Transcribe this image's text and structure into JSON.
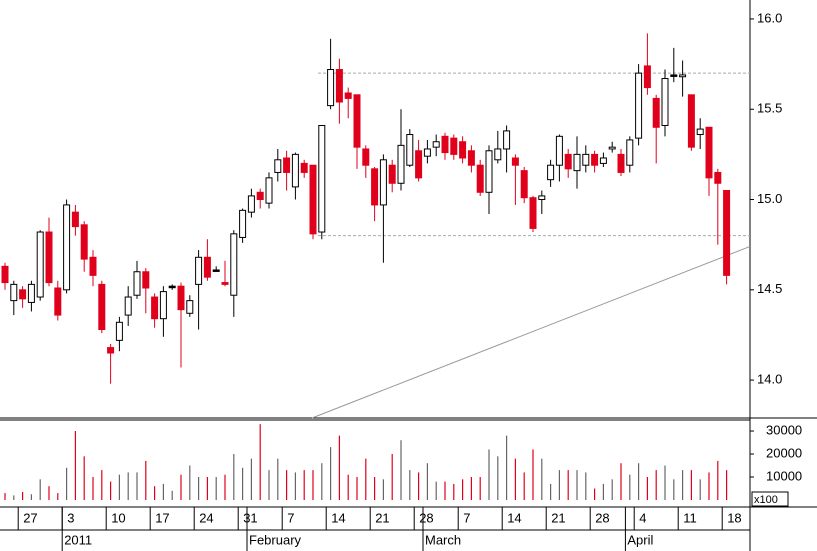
{
  "chart_data": {
    "type": "candlestick",
    "categories": [
      null,
      null,
      "27",
      null,
      null,
      null,
      null,
      "3",
      null,
      null,
      null,
      null,
      "10",
      null,
      null,
      null,
      null,
      "17",
      null,
      null,
      null,
      null,
      "24",
      null,
      null,
      null,
      null,
      "31",
      null,
      null,
      null,
      null,
      "7",
      null,
      null,
      null,
      null,
      "14",
      null,
      null,
      null,
      null,
      "21",
      null,
      null,
      null,
      null,
      "28",
      null,
      null,
      null,
      null,
      "7",
      null,
      null,
      null,
      null,
      "14",
      null,
      null,
      null,
      null,
      "21",
      null,
      null,
      null,
      null,
      "28",
      null,
      null,
      null,
      null,
      "4",
      null,
      null,
      null,
      null,
      "11",
      null,
      null,
      null,
      null,
      "18"
    ],
    "months": [
      null,
      null,
      null,
      null,
      null,
      null,
      null,
      "2011",
      null,
      null,
      null,
      null,
      null,
      null,
      null,
      null,
      null,
      null,
      null,
      null,
      null,
      null,
      null,
      null,
      null,
      null,
      null,
      null,
      "February",
      null,
      null,
      null,
      null,
      null,
      null,
      null,
      null,
      null,
      null,
      null,
      null,
      null,
      null,
      null,
      null,
      null,
      null,
      null,
      "March",
      null,
      null,
      null,
      null,
      null,
      null,
      null,
      null,
      null,
      null,
      null,
      null,
      null,
      null,
      null,
      null,
      null,
      null,
      null,
      null,
      null,
      null,
      "April",
      null,
      null,
      null,
      null,
      null,
      null,
      null,
      null,
      null,
      null,
      null
    ],
    "open": [
      14.63,
      14.44,
      14.5,
      14.43,
      14.46,
      14.82,
      14.51,
      14.5,
      14.93,
      14.86,
      14.68,
      14.53,
      14.18,
      14.22,
      14.36,
      14.47,
      14.6,
      14.46,
      14.34,
      14.52,
      14.52,
      14.37,
      14.53,
      14.68,
      14.61,
      14.54,
      14.47,
      14.79,
      14.93,
      15.04,
      14.98,
      15.15,
      15.23,
      15.07,
      15.2,
      15.19,
      14.82,
      15.52,
      15.72,
      15.59,
      15.58,
      15.28,
      15.17,
      14.97,
      15.19,
      15.09,
      15.19,
      15.27,
      15.24,
      15.29,
      15.35,
      15.34,
      15.32,
      15.27,
      15.19,
      15.04,
      15.22,
      15.28,
      15.23,
      15.16,
      15.01,
      15.0,
      15.11,
      15.19,
      15.25,
      15.16,
      15.19,
      15.25,
      15.2,
      15.28,
      15.25,
      15.19,
      15.34,
      15.74,
      15.56,
      15.41,
      15.69,
      15.68,
      15.58,
      15.36,
      15.4,
      15.15,
      15.05
    ],
    "high": [
      14.65,
      14.55,
      14.52,
      14.55,
      14.83,
      14.9,
      14.55,
      15.0,
      14.97,
      14.88,
      14.72,
      14.55,
      14.2,
      14.35,
      14.52,
      14.66,
      14.62,
      14.48,
      14.52,
      14.53,
      14.54,
      14.47,
      14.72,
      14.78,
      14.63,
      14.66,
      14.83,
      14.95,
      15.06,
      15.06,
      15.15,
      15.28,
      15.27,
      15.26,
      15.22,
      15.19,
      15.41,
      15.89,
      15.78,
      15.62,
      15.58,
      15.3,
      15.18,
      15.25,
      15.22,
      15.5,
      15.39,
      15.33,
      15.33,
      15.36,
      15.37,
      15.36,
      15.35,
      15.3,
      15.22,
      15.3,
      15.38,
      15.41,
      15.25,
      15.18,
      15.02,
      15.05,
      15.22,
      15.36,
      15.28,
      15.35,
      15.3,
      15.27,
      15.26,
      15.32,
      15.28,
      15.35,
      15.75,
      15.92,
      15.58,
      15.72,
      15.84,
      15.77,
      15.58,
      15.45,
      15.4,
      15.17,
      15.05
    ],
    "low": [
      14.5,
      14.36,
      14.4,
      14.38,
      14.44,
      14.52,
      14.33,
      14.48,
      14.8,
      14.6,
      14.52,
      14.26,
      13.98,
      14.16,
      14.3,
      14.45,
      14.37,
      14.29,
      14.24,
      14.5,
      14.07,
      14.35,
      14.28,
      14.55,
      14.6,
      14.52,
      14.35,
      14.76,
      14.9,
      14.95,
      14.95,
      15.1,
      15.05,
      15.0,
      15.12,
      14.78,
      14.78,
      15.5,
      15.42,
      15.45,
      15.17,
      15.12,
      14.88,
      14.65,
      15.04,
      15.05,
      15.18,
      15.1,
      15.2,
      15.24,
      15.22,
      15.22,
      15.2,
      15.15,
      15.02,
      14.92,
      15.2,
      15.15,
      14.97,
      14.98,
      14.82,
      14.92,
      15.07,
      15.1,
      15.12,
      15.06,
      15.15,
      15.15,
      15.18,
      15.26,
      15.13,
      15.15,
      15.3,
      15.58,
      15.2,
      15.35,
      15.65,
      15.57,
      15.27,
      15.28,
      15.02,
      14.75,
      14.53
    ],
    "close": [
      14.54,
      14.53,
      14.45,
      14.53,
      14.82,
      14.54,
      14.36,
      14.97,
      14.85,
      14.67,
      14.58,
      14.28,
      14.15,
      14.32,
      14.46,
      14.6,
      14.51,
      14.34,
      14.49,
      14.52,
      14.39,
      14.44,
      14.68,
      14.57,
      14.61,
      14.53,
      14.81,
      14.94,
      15.02,
      15.0,
      15.12,
      15.22,
      15.15,
      15.25,
      15.15,
      14.81,
      15.41,
      15.72,
      15.54,
      15.56,
      15.29,
      15.19,
      14.97,
      15.22,
      15.09,
      15.3,
      15.36,
      15.12,
      15.28,
      15.32,
      15.26,
      15.25,
      15.23,
      15.19,
      15.04,
      15.27,
      15.28,
      15.38,
      15.19,
      15.01,
      14.84,
      15.02,
      15.19,
      15.35,
      15.17,
      15.25,
      15.25,
      15.19,
      15.23,
      15.29,
      15.15,
      15.33,
      15.7,
      15.62,
      15.4,
      15.67,
      15.69,
      15.69,
      15.29,
      15.39,
      15.12,
      15.09,
      14.58
    ],
    "volume": [
      3000,
      2000,
      3500,
      2500,
      9000,
      6000,
      3000,
      14000,
      30000,
      19000,
      10000,
      13000,
      8000,
      11000,
      12000,
      12000,
      17000,
      6000,
      7000,
      4000,
      11000,
      15000,
      10000,
      10000,
      10000,
      11000,
      20000,
      14000,
      18000,
      33000,
      13000,
      18000,
      13000,
      12000,
      13000,
      13000,
      16000,
      23000,
      28000,
      11000,
      10000,
      18000,
      10000,
      9000,
      20000,
      26000,
      13000,
      12000,
      16000,
      8000,
      8000,
      7000,
      9000,
      10000,
      10000,
      22000,
      19000,
      28000,
      18000,
      12000,
      22000,
      18000,
      7000,
      13000,
      13000,
      13000,
      12000,
      5000,
      7000,
      9000,
      16000,
      11000,
      16000,
      10000,
      13000,
      15000,
      9000,
      13000,
      13000,
      9000,
      12000,
      17000,
      13000
    ],
    "up_color": "#ffffff",
    "down_color": "#e0001b",
    "flat_color": "#000000",
    "ylim": [
      13.79,
      16.105
    ],
    "yticks": [
      {
        "value": 14,
        "label": "14.0"
      },
      {
        "value": 14.5,
        "label": "14.5"
      },
      {
        "value": 15,
        "label": "15.0"
      },
      {
        "value": 15.5,
        "label": "15.5"
      },
      {
        "value": 16,
        "label": "16.0"
      }
    ],
    "volume_ylim": [
      0,
      34800
    ],
    "volume_yticks": [
      10000,
      20000,
      30000
    ],
    "volume_unit": "x100",
    "hlines": [
      15.7,
      14.8
    ],
    "trendline": [
      13.79,
      14.74
    ]
  }
}
